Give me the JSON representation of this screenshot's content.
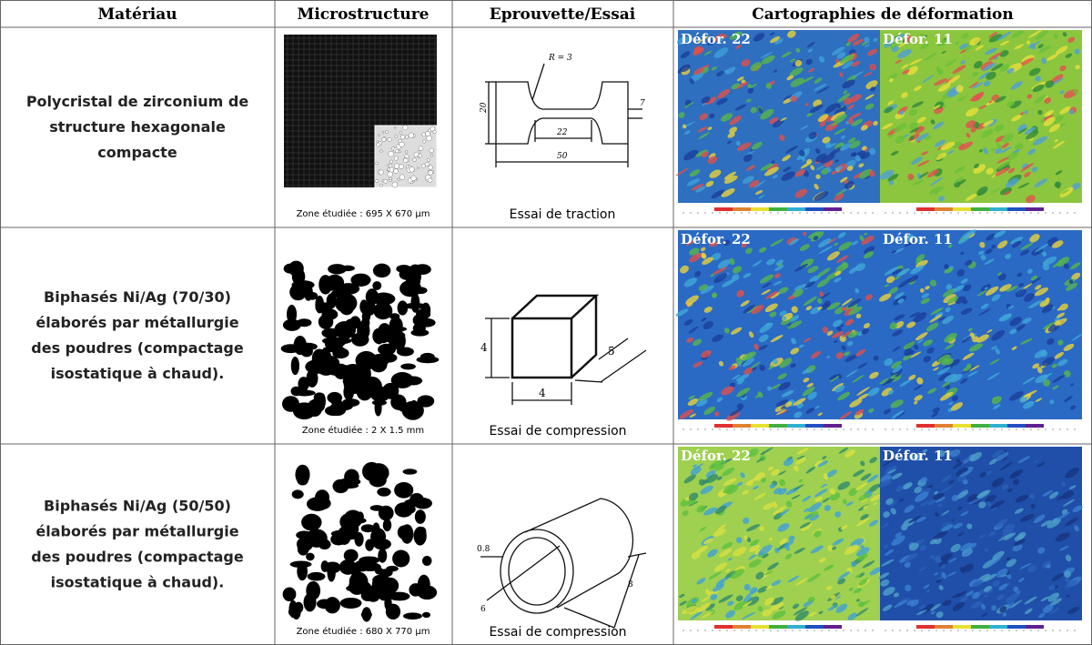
{
  "table": {
    "headers": [
      "Matériau",
      "Microstructure",
      "Eprouvette/Essai",
      "Cartographies de déformation"
    ],
    "rows": [
      {
        "material": [
          "Polycristal de zirconium de",
          "structure hexagonale",
          "compacte"
        ],
        "zone": "Zone étudiée : 695 X 670 µm",
        "test": "Essai de traction",
        "dims": [
          "R = 3",
          "20",
          "7",
          "22",
          "50"
        ],
        "maps": [
          "Défor. 22",
          "Défor. 11"
        ]
      },
      {
        "material": [
          "Biphasés Ni/Ag (70/30)",
          "élaborés par métallurgie",
          "des poudres  (compactage",
          "isostatique à chaud)."
        ],
        "zone": "Zone étudiée : 2 X 1.5 mm",
        "test": "Essai de compression",
        "dims": [
          "4",
          "4",
          "5"
        ],
        "maps": [
          "Défor. 22",
          "Défor. 11"
        ]
      },
      {
        "material": [
          "Biphasés Ni/Ag (50/50)",
          "élaborés par métallurgie",
          "des poudres  (compactage",
          "isostatique à chaud)."
        ],
        "zone": "Zone étudiée : 680 X 770 µm",
        "test": "Essai de compression",
        "dims": [
          "0.8",
          "6",
          "8"
        ],
        "maps": [
          "Défor. 22",
          "Défor. 11"
        ]
      }
    ]
  }
}
